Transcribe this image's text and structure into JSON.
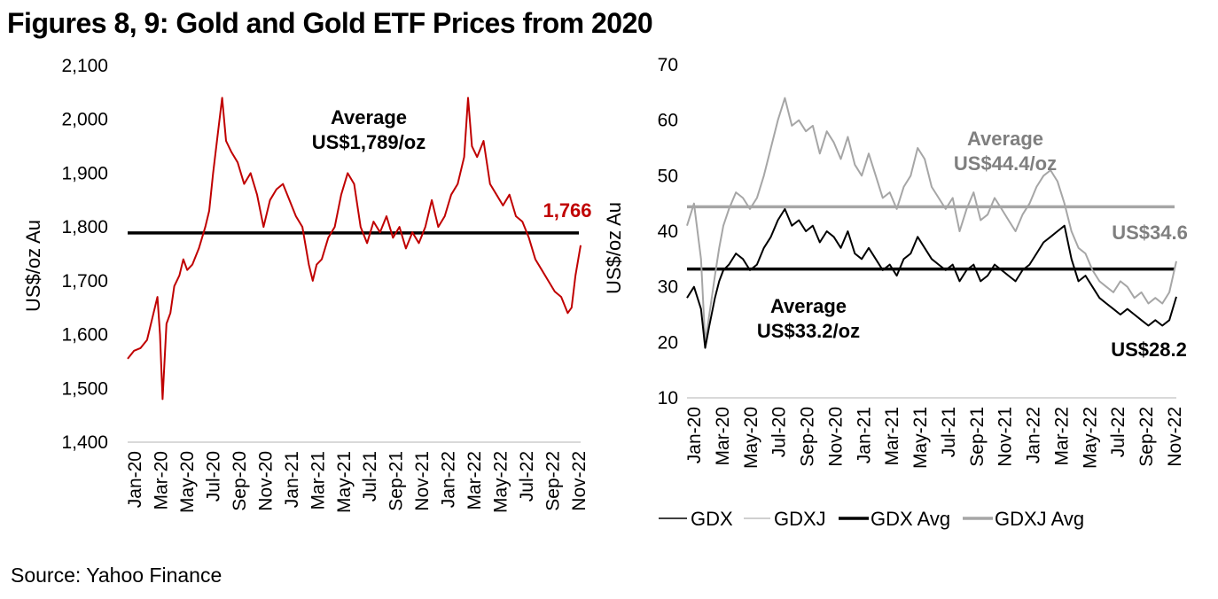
{
  "title": "Figures 8, 9: Gold and Gold ETF Prices from 2020",
  "source": "Source: Yahoo Finance",
  "colors": {
    "gold": "#C00000",
    "gdx": "#000000",
    "gdxj": "#A6A6A6",
    "gdxj_label": "#7F7F7F",
    "axis": "#D9D9D9"
  },
  "chart_data": [
    {
      "type": "line",
      "title": "Gold Price",
      "ylabel": "US$/oz Au",
      "xlabel": "",
      "ylim": [
        1400,
        2100
      ],
      "yticks": [
        1400,
        1500,
        1600,
        1700,
        1800,
        1900,
        2000,
        2100
      ],
      "ytick_labels": [
        "1,400",
        "1,500",
        "1,600",
        "1,700",
        "1,800",
        "1,900",
        "2,000",
        "2,100"
      ],
      "xticks": [
        "Jan-20",
        "Mar-20",
        "May-20",
        "Jul-20",
        "Sep-20",
        "Nov-20",
        "Jan-21",
        "Mar-21",
        "May-21",
        "Jul-21",
        "Sep-21",
        "Nov-21",
        "Jan-22",
        "Mar-22",
        "May-22",
        "Jul-22",
        "Sep-22",
        "Nov-22"
      ],
      "x_range_months": [
        0,
        35
      ],
      "grid": false,
      "series": [
        {
          "name": "Gold",
          "color": "#C00000",
          "x_months": [
            0,
            0.5,
            1,
            1.5,
            2,
            2.3,
            2.5,
            2.7,
            3,
            3.3,
            3.6,
            4,
            4.3,
            4.6,
            5,
            5.5,
            6,
            6.3,
            6.6,
            7,
            7.3,
            7.6,
            8,
            8.5,
            9,
            9.5,
            10,
            10.5,
            11,
            11.5,
            12,
            12.5,
            13,
            13.5,
            14,
            14.3,
            14.6,
            15,
            15.5,
            16,
            16.5,
            17,
            17.5,
            18,
            18.5,
            19,
            19.5,
            20,
            20.5,
            21,
            21.5,
            22,
            22.5,
            23,
            23.5,
            24,
            24.5,
            25,
            25.5,
            26,
            26.3,
            26.6,
            27,
            27.5,
            28,
            28.5,
            29,
            29.5,
            30,
            30.5,
            31,
            31.5,
            32,
            32.5,
            33,
            33.5,
            34,
            34.3,
            34.6,
            35
          ],
          "values": [
            1555,
            1570,
            1575,
            1590,
            1640,
            1670,
            1600,
            1480,
            1620,
            1640,
            1690,
            1710,
            1740,
            1720,
            1730,
            1760,
            1800,
            1830,
            1900,
            1980,
            2040,
            1960,
            1940,
            1920,
            1880,
            1900,
            1860,
            1800,
            1850,
            1870,
            1880,
            1850,
            1820,
            1800,
            1730,
            1700,
            1730,
            1740,
            1780,
            1800,
            1860,
            1900,
            1880,
            1800,
            1770,
            1810,
            1790,
            1820,
            1780,
            1800,
            1760,
            1790,
            1770,
            1800,
            1850,
            1800,
            1820,
            1860,
            1880,
            1930,
            2040,
            1950,
            1930,
            1960,
            1880,
            1860,
            1840,
            1860,
            1820,
            1810,
            1780,
            1740,
            1720,
            1700,
            1680,
            1670,
            1640,
            1650,
            1710,
            1766
          ]
        },
        {
          "name": "Average",
          "value": 1789,
          "color": "#000000"
        }
      ],
      "annotations": [
        {
          "text_line1": "Average",
          "text_line2": "US$1,789/oz",
          "color": "#000000"
        },
        {
          "text": "1,766",
          "color": "#C00000"
        }
      ]
    },
    {
      "type": "line",
      "title": "Gold ETF Prices",
      "ylabel": "US$/oz Au",
      "xlabel": "",
      "ylim": [
        10,
        70
      ],
      "yticks": [
        10,
        20,
        30,
        40,
        50,
        60,
        70
      ],
      "ytick_labels": [
        "10",
        "20",
        "30",
        "40",
        "50",
        "60",
        "70"
      ],
      "xticks": [
        "Jan-20",
        "Mar-20",
        "May-20",
        "Jul-20",
        "Sep-20",
        "Nov-20",
        "Jan-21",
        "Mar-21",
        "May-21",
        "Jul-21",
        "Sep-21",
        "Nov-21",
        "Jan-22",
        "Mar-22",
        "May-22",
        "Jul-22",
        "Sep-22",
        "Nov-22"
      ],
      "x_range_months": [
        0,
        35
      ],
      "grid": false,
      "legend": "bottom",
      "legend_entries": [
        "GDX",
        "GDXJ",
        "GDX Avg",
        "GDXJ Avg"
      ],
      "series": [
        {
          "name": "GDX",
          "color": "#000000",
          "x_months": [
            0,
            0.5,
            1,
            1.3,
            1.6,
            2,
            2.3,
            2.6,
            3,
            3.5,
            4,
            4.5,
            5,
            5.5,
            6,
            6.5,
            7,
            7.5,
            8,
            8.5,
            9,
            9.5,
            10,
            10.5,
            11,
            11.5,
            12,
            12.5,
            13,
            13.5,
            14,
            14.5,
            15,
            15.5,
            16,
            16.5,
            17,
            17.5,
            18,
            18.5,
            19,
            19.5,
            20,
            20.5,
            21,
            21.5,
            22,
            22.5,
            23,
            23.5,
            24,
            24.5,
            25,
            25.5,
            26,
            26.5,
            27,
            27.5,
            28,
            28.5,
            29,
            29.5,
            30,
            30.5,
            31,
            31.5,
            32,
            32.5,
            33,
            33.5,
            34,
            34.5,
            35
          ],
          "values": [
            28,
            30,
            26,
            19,
            23,
            28,
            31,
            33,
            34,
            36,
            35,
            33,
            34,
            37,
            39,
            42,
            44,
            41,
            42,
            40,
            41,
            38,
            40,
            39,
            37,
            40,
            36,
            35,
            37,
            35,
            33,
            34,
            32,
            35,
            36,
            39,
            37,
            35,
            34,
            33,
            34,
            31,
            33,
            34,
            31,
            32,
            34,
            33,
            32,
            31,
            33,
            34,
            36,
            38,
            39,
            40,
            41,
            35,
            31,
            32,
            30,
            28,
            27,
            26,
            25,
            26,
            25,
            24,
            23,
            24,
            23,
            24,
            28.2
          ]
        },
        {
          "name": "GDXJ",
          "color": "#A6A6A6",
          "x_months": [
            0,
            0.5,
            1,
            1.3,
            1.6,
            2,
            2.3,
            2.6,
            3,
            3.5,
            4,
            4.5,
            5,
            5.5,
            6,
            6.5,
            7,
            7.5,
            8,
            8.5,
            9,
            9.5,
            10,
            10.5,
            11,
            11.5,
            12,
            12.5,
            13,
            13.5,
            14,
            14.5,
            15,
            15.5,
            16,
            16.5,
            17,
            17.5,
            18,
            18.5,
            19,
            19.5,
            20,
            20.5,
            21,
            21.5,
            22,
            22.5,
            23,
            23.5,
            24,
            24.5,
            25,
            25.5,
            26,
            26.5,
            27,
            27.5,
            28,
            28.5,
            29,
            29.5,
            30,
            30.5,
            31,
            31.5,
            32,
            32.5,
            33,
            33.5,
            34,
            34.5,
            35
          ],
          "values": [
            41,
            45,
            35,
            20,
            25,
            32,
            37,
            41,
            44,
            47,
            46,
            44,
            46,
            50,
            55,
            60,
            64,
            59,
            60,
            58,
            59,
            54,
            58,
            56,
            53,
            57,
            52,
            50,
            54,
            50,
            46,
            47,
            44,
            48,
            50,
            55,
            53,
            48,
            46,
            44,
            46,
            40,
            44,
            47,
            42,
            43,
            46,
            44,
            42,
            40,
            43,
            45,
            48,
            50,
            51,
            49,
            45,
            40,
            37,
            36,
            33,
            31,
            30,
            29,
            31,
            30,
            28,
            29,
            27,
            28,
            27,
            29,
            34.6
          ]
        },
        {
          "name": "GDX Avg",
          "value": 33.2,
          "color": "#000000"
        },
        {
          "name": "GDXJ Avg",
          "value": 44.4,
          "color": "#A6A6A6"
        }
      ],
      "annotations": [
        {
          "text_line1": "Average",
          "text_line2": "US$44.4/oz",
          "color": "#7F7F7F"
        },
        {
          "text": "US$34.6",
          "color": "#7F7F7F"
        },
        {
          "text_line1": "Average",
          "text_line2": "US$33.2/oz",
          "color": "#000000"
        },
        {
          "text": "US$28.2",
          "color": "#000000"
        }
      ]
    }
  ]
}
